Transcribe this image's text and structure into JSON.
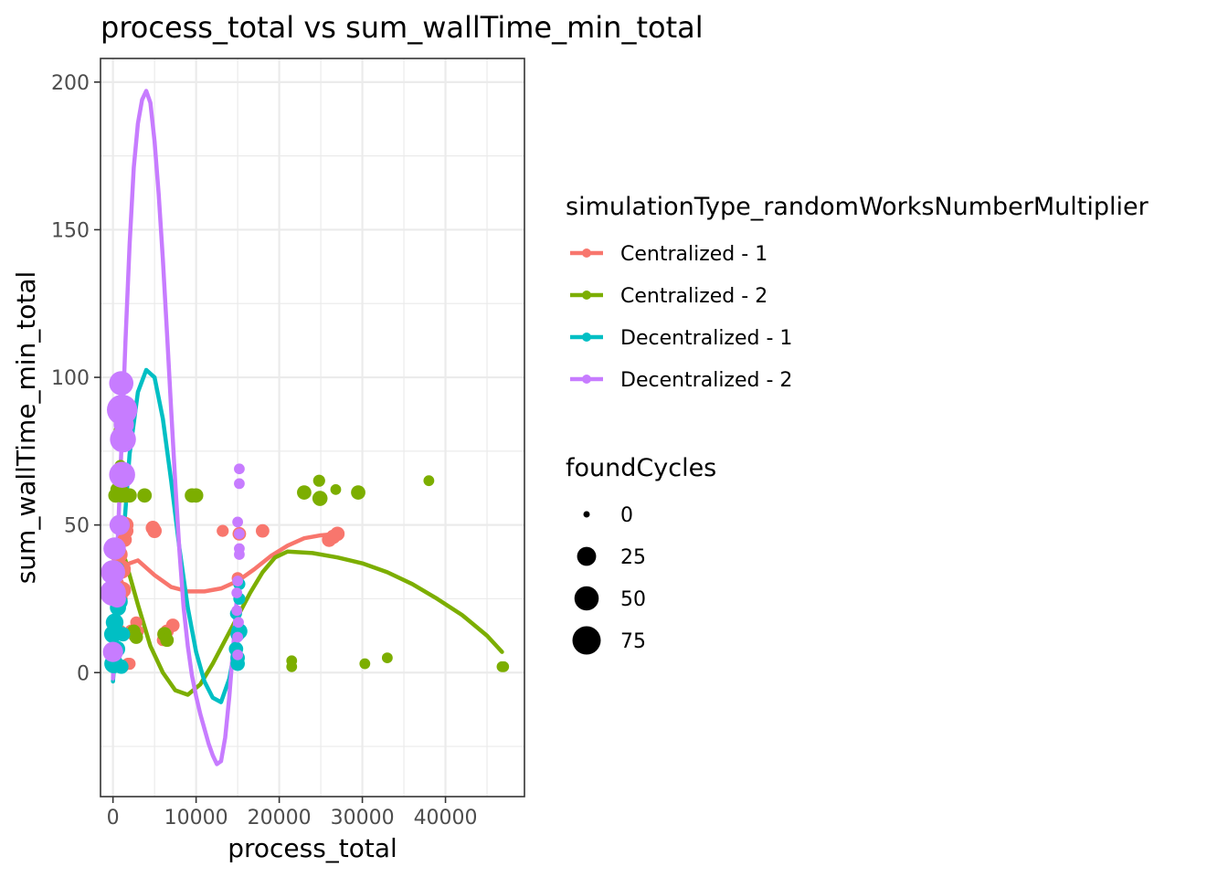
{
  "chart_data": {
    "type": "scatter",
    "title": "process_total  vs  sum_wallTime_min_total",
    "xlabel": "process_total",
    "ylabel": "sum_wallTime_min_total",
    "xlim": [
      -1500,
      49500
    ],
    "ylim": [
      -42,
      208
    ],
    "x_ticks": [
      0,
      10000,
      20000,
      30000,
      40000
    ],
    "x_tick_labels": [
      "0",
      "10000",
      "20000",
      "30000",
      "40000"
    ],
    "y_ticks": [
      0,
      50,
      100,
      150,
      200
    ],
    "y_tick_labels": [
      "0",
      "50",
      "100",
      "150",
      "200"
    ],
    "grid": true,
    "legend_placement": "right",
    "color_legend": {
      "title": "simulationType_randomWorksNumberMultiplier",
      "entries": [
        "Centralized - 1",
        "Centralized - 2",
        "Decentralized - 1",
        "Decentralized - 2"
      ]
    },
    "size_legend": {
      "title": "foundCycles",
      "entries": [
        {
          "label": "0",
          "value": 0
        },
        {
          "label": "25",
          "value": 25
        },
        {
          "label": "50",
          "value": 50
        },
        {
          "label": "75",
          "value": 75
        }
      ]
    },
    "series": [
      {
        "name": "Centralized - 1",
        "color": "#F8766D",
        "points": [
          [
            500,
            30,
            10
          ],
          [
            700,
            40,
            20
          ],
          [
            900,
            25,
            10
          ],
          [
            1000,
            35,
            25
          ],
          [
            1200,
            28,
            15
          ],
          [
            1400,
            45,
            10
          ],
          [
            1500,
            50,
            15
          ],
          [
            1600,
            48,
            10
          ],
          [
            1800,
            3,
            5
          ],
          [
            2000,
            3,
            5
          ],
          [
            2200,
            14,
            8
          ],
          [
            2500,
            13,
            8
          ],
          [
            2800,
            17,
            5
          ],
          [
            3000,
            14,
            5
          ],
          [
            4800,
            49,
            10
          ],
          [
            5000,
            48,
            10
          ],
          [
            6200,
            13,
            10
          ],
          [
            6500,
            14,
            8
          ],
          [
            7200,
            16,
            8
          ],
          [
            13200,
            48,
            5
          ],
          [
            15200,
            47,
            8
          ],
          [
            15000,
            32,
            5
          ],
          [
            18000,
            48,
            8
          ],
          [
            26000,
            45,
            10
          ],
          [
            26500,
            46,
            10
          ],
          [
            27000,
            47,
            10
          ],
          [
            1200,
            2,
            5
          ],
          [
            800,
            14,
            8
          ],
          [
            6000,
            11,
            5
          ]
        ],
        "smooth": [
          [
            0,
            30
          ],
          [
            1000,
            36
          ],
          [
            3000,
            38
          ],
          [
            5000,
            33
          ],
          [
            7000,
            29
          ],
          [
            9000,
            27.5
          ],
          [
            11000,
            27.5
          ],
          [
            13000,
            28.5
          ],
          [
            15000,
            31
          ],
          [
            17000,
            35
          ],
          [
            19000,
            39.5
          ],
          [
            21000,
            43
          ],
          [
            23000,
            45.5
          ],
          [
            25000,
            46.5
          ],
          [
            27000,
            47
          ]
        ]
      },
      {
        "name": "Centralized - 2",
        "color": "#7CAE00",
        "points": [
          [
            300,
            60,
            10
          ],
          [
            500,
            62,
            8
          ],
          [
            700,
            65,
            5
          ],
          [
            800,
            82,
            5
          ],
          [
            900,
            70,
            5
          ],
          [
            1000,
            60,
            10
          ],
          [
            1200,
            61,
            8
          ],
          [
            1500,
            60,
            10
          ],
          [
            2000,
            60,
            10
          ],
          [
            2500,
            14,
            8
          ],
          [
            2800,
            12,
            8
          ],
          [
            3800,
            60,
            10
          ],
          [
            6200,
            13,
            10
          ],
          [
            6500,
            11,
            8
          ],
          [
            9500,
            60,
            10
          ],
          [
            10000,
            60,
            10
          ],
          [
            21500,
            4,
            3
          ],
          [
            21500,
            2,
            3
          ],
          [
            23000,
            61,
            10
          ],
          [
            24800,
            65,
            5
          ],
          [
            24900,
            59,
            12
          ],
          [
            26800,
            62,
            3
          ],
          [
            29500,
            61,
            10
          ],
          [
            30300,
            3,
            3
          ],
          [
            33000,
            5,
            3
          ],
          [
            38000,
            65,
            3
          ],
          [
            46800,
            2,
            3
          ],
          [
            47000,
            2,
            3
          ]
        ],
        "smooth": [
          [
            0,
            45
          ],
          [
            1500,
            38
          ],
          [
            3000,
            23
          ],
          [
            4500,
            9
          ],
          [
            6000,
            0
          ],
          [
            7500,
            -6
          ],
          [
            9000,
            -7.5
          ],
          [
            10500,
            -4
          ],
          [
            12000,
            3
          ],
          [
            13500,
            11
          ],
          [
            15000,
            19
          ],
          [
            16500,
            27
          ],
          [
            18000,
            34
          ],
          [
            19500,
            39
          ],
          [
            21000,
            41
          ],
          [
            24000,
            40.5
          ],
          [
            27000,
            39
          ],
          [
            30000,
            37
          ],
          [
            33000,
            34
          ],
          [
            36000,
            30
          ],
          [
            39000,
            25
          ],
          [
            42000,
            19.5
          ],
          [
            45000,
            12.5
          ],
          [
            46800,
            7
          ]
        ]
      },
      {
        "name": "Decentralized - 1",
        "color": "#00BFC4",
        "points": [
          [
            0,
            13,
            20
          ],
          [
            100,
            3,
            25
          ],
          [
            200,
            17,
            20
          ],
          [
            300,
            25,
            15
          ],
          [
            400,
            35,
            15
          ],
          [
            500,
            8,
            15
          ],
          [
            600,
            22,
            15
          ],
          [
            800,
            24,
            15
          ],
          [
            1000,
            2,
            10
          ],
          [
            1200,
            13,
            10
          ],
          [
            15000,
            13,
            10
          ],
          [
            15200,
            14,
            15
          ],
          [
            15000,
            3,
            10
          ],
          [
            15000,
            5,
            10
          ],
          [
            14800,
            8,
            10
          ],
          [
            15200,
            25,
            5
          ],
          [
            15200,
            30,
            5
          ],
          [
            14800,
            20,
            5
          ]
        ],
        "smooth": [
          [
            0,
            -3
          ],
          [
            1000,
            36
          ],
          [
            2000,
            74
          ],
          [
            3000,
            95
          ],
          [
            4000,
            102.5
          ],
          [
            5000,
            100
          ],
          [
            6000,
            86
          ],
          [
            7000,
            65
          ],
          [
            8000,
            42
          ],
          [
            9000,
            22
          ],
          [
            10000,
            7
          ],
          [
            11000,
            -3
          ],
          [
            12000,
            -8.5
          ],
          [
            13000,
            -10
          ],
          [
            14000,
            -2
          ],
          [
            15000,
            13
          ]
        ]
      },
      {
        "name": "Decentralized - 2",
        "color": "#C77CFF",
        "points": [
          [
            0,
            27,
            60
          ],
          [
            0,
            34,
            50
          ],
          [
            0,
            7,
            30
          ],
          [
            200,
            42,
            40
          ],
          [
            500,
            25,
            20
          ],
          [
            800,
            50,
            30
          ],
          [
            1000,
            98,
            50
          ],
          [
            1100,
            89,
            90
          ],
          [
            1200,
            79,
            60
          ],
          [
            1100,
            67,
            60
          ],
          [
            1300,
            84,
            30
          ],
          [
            15200,
            69,
            3
          ],
          [
            15200,
            64,
            3
          ],
          [
            15000,
            51,
            3
          ],
          [
            15200,
            47,
            3
          ],
          [
            15200,
            42,
            3
          ],
          [
            15200,
            40,
            3
          ],
          [
            15000,
            31,
            3
          ],
          [
            14900,
            27,
            3
          ],
          [
            14900,
            21,
            3
          ],
          [
            15100,
            17,
            3
          ],
          [
            15000,
            6,
            3
          ],
          [
            15000,
            12,
            3
          ]
        ],
        "smooth": [
          [
            0,
            -2
          ],
          [
            500,
            40
          ],
          [
            1000,
            75
          ],
          [
            1500,
            112
          ],
          [
            2000,
            145
          ],
          [
            2500,
            171
          ],
          [
            3000,
            186
          ],
          [
            3500,
            194
          ],
          [
            4000,
            197
          ],
          [
            4500,
            193
          ],
          [
            5000,
            180
          ],
          [
            5500,
            162
          ],
          [
            6000,
            140
          ],
          [
            6500,
            115
          ],
          [
            7000,
            89
          ],
          [
            7500,
            64
          ],
          [
            8000,
            41
          ],
          [
            8500,
            22
          ],
          [
            9000,
            9
          ],
          [
            9500,
            -1
          ],
          [
            10000,
            -8
          ],
          [
            10500,
            -14
          ],
          [
            11000,
            -19
          ],
          [
            11500,
            -24
          ],
          [
            12000,
            -28
          ],
          [
            12500,
            -31
          ],
          [
            13000,
            -30
          ],
          [
            13500,
            -22
          ],
          [
            14000,
            -8
          ],
          [
            14500,
            10
          ],
          [
            15000,
            29
          ]
        ]
      }
    ]
  }
}
